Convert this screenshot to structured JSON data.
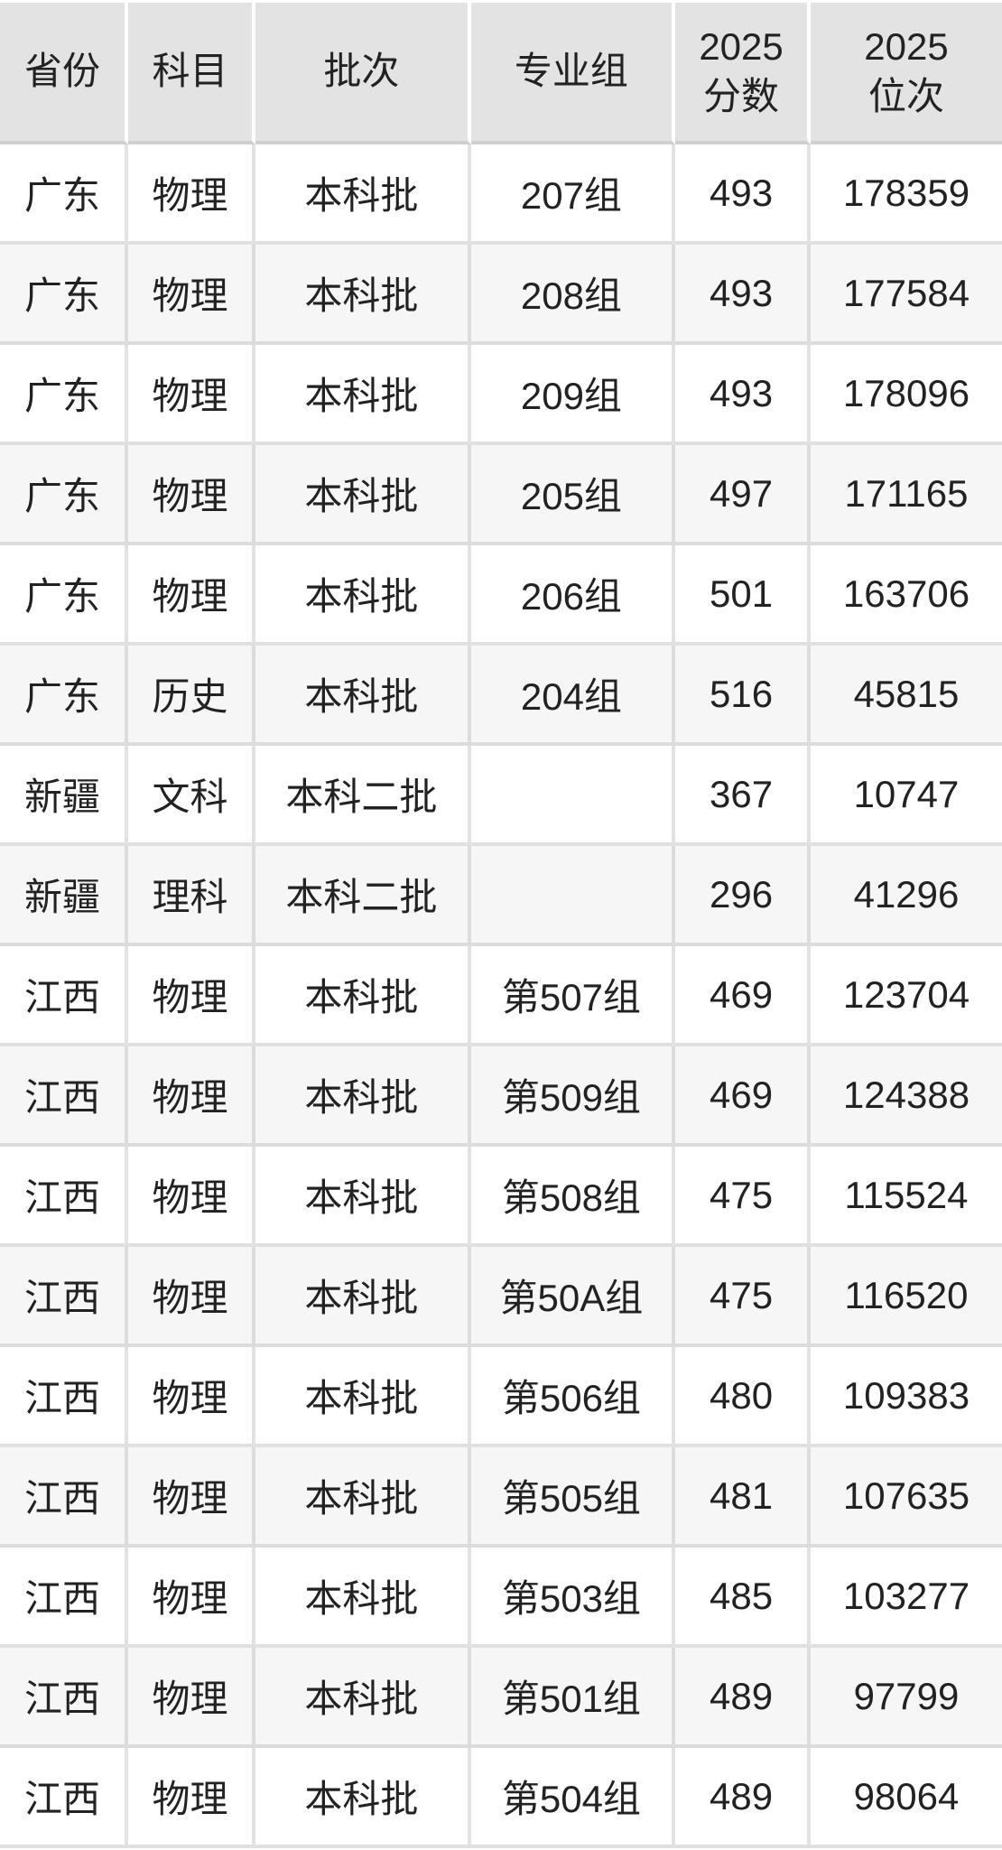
{
  "chart_data": {
    "type": "table",
    "title": "",
    "column_keys": [
      "province",
      "subject",
      "batch",
      "major-group",
      "score-2025",
      "rank-2025"
    ],
    "columns": [
      "省份",
      "科目",
      "批次",
      "专业组",
      "2025分数",
      "2025位次"
    ],
    "header_display": [
      "省份",
      "科目",
      "批次",
      "专业组",
      "2025\n分数",
      "2025\n位次"
    ],
    "rows": [
      [
        "广东",
        "物理",
        "本科批",
        "207组",
        "493",
        "178359"
      ],
      [
        "广东",
        "物理",
        "本科批",
        "208组",
        "493",
        "177584"
      ],
      [
        "广东",
        "物理",
        "本科批",
        "209组",
        "493",
        "178096"
      ],
      [
        "广东",
        "物理",
        "本科批",
        "205组",
        "497",
        "171165"
      ],
      [
        "广东",
        "物理",
        "本科批",
        "206组",
        "501",
        "163706"
      ],
      [
        "广东",
        "历史",
        "本科批",
        "204组",
        "516",
        "45815"
      ],
      [
        "新疆",
        "文科",
        "本科二批",
        "",
        "367",
        "10747"
      ],
      [
        "新疆",
        "理科",
        "本科二批",
        "",
        "296",
        "41296"
      ],
      [
        "江西",
        "物理",
        "本科批",
        "第507组",
        "469",
        "123704"
      ],
      [
        "江西",
        "物理",
        "本科批",
        "第509组",
        "469",
        "124388"
      ],
      [
        "江西",
        "物理",
        "本科批",
        "第508组",
        "475",
        "115524"
      ],
      [
        "江西",
        "物理",
        "本科批",
        "第50A组",
        "475",
        "116520"
      ],
      [
        "江西",
        "物理",
        "本科批",
        "第506组",
        "480",
        "109383"
      ],
      [
        "江西",
        "物理",
        "本科批",
        "第505组",
        "481",
        "107635"
      ],
      [
        "江西",
        "物理",
        "本科批",
        "第503组",
        "485",
        "103277"
      ],
      [
        "江西",
        "物理",
        "本科批",
        "第501组",
        "489",
        "97799"
      ],
      [
        "江西",
        "物理",
        "本科批",
        "第504组",
        "489",
        "98064"
      ]
    ],
    "layout": {
      "zebra_striping": true,
      "first_data_row_background": "white",
      "grid": true
    }
  },
  "colors": {
    "header_background": "#e3e3e3",
    "row_background": "#ffffff",
    "row_alt_background": "#f5f6f5",
    "header_cell_gap": "#ffffff",
    "grid_line": "#e0e0e0",
    "header_bottom_line": "#cfcfcf",
    "text": "#222222"
  }
}
